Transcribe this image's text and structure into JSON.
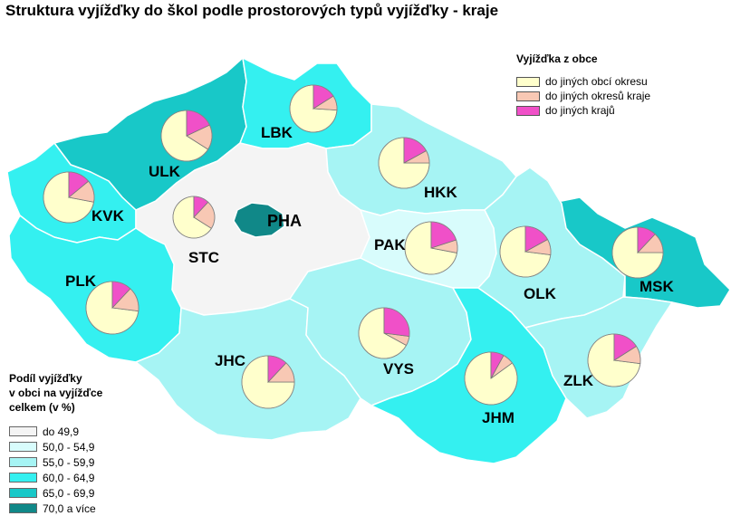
{
  "title": "Struktura vyjížďky do škol podle prostorových typů vyjížďky - kraje",
  "colors": {
    "pie_okres": "#ffffcc",
    "pie_kraj": "#f8c8b4",
    "pie_jine": "#f050c8",
    "c1": "#f4f4f4",
    "c2": "#d8fcfc",
    "c3": "#a6f4f4",
    "c4": "#34f0f0",
    "c5": "#18c8c8",
    "c6": "#108888"
  },
  "legend_top": {
    "title": "Vyjížďka z obce",
    "items": [
      {
        "label": "do jiných obcí okresu",
        "color": "#ffffcc"
      },
      {
        "label": "do jiných okresů kraje",
        "color": "#f8c8b4"
      },
      {
        "label": "do jiných krajů",
        "color": "#f050c8"
      }
    ]
  },
  "legend_bottom": {
    "title_lines": [
      "Podíl vyjížďky",
      "v obci na vyjížďce",
      "celkem (v %)"
    ],
    "classes": [
      {
        "label": "do 49,9",
        "color": "#f4f4f4"
      },
      {
        "label": "50,0 - 54,9",
        "color": "#d8fcfc"
      },
      {
        "label": "55,0 - 59,9",
        "color": "#a6f4f4"
      },
      {
        "label": "60,0 - 64,9",
        "color": "#34f0f0"
      },
      {
        "label": "65,0 - 69,9",
        "color": "#18c8c8"
      },
      {
        "label": "70,0  a více",
        "color": "#108888"
      }
    ]
  },
  "regions": [
    {
      "code": "PHA",
      "class": 6,
      "pie": null
    },
    {
      "code": "STC",
      "class": 1,
      "pie": [
        0.66,
        0.22,
        0.12
      ]
    },
    {
      "code": "ULK",
      "class": 5,
      "pie": [
        0.66,
        0.16,
        0.18
      ]
    },
    {
      "code": "LBK",
      "class": 4,
      "pie": [
        0.74,
        0.1,
        0.16
      ]
    },
    {
      "code": "KVK",
      "class": 4,
      "pie": [
        0.72,
        0.14,
        0.14
      ]
    },
    {
      "code": "PLK",
      "class": 4,
      "pie": [
        0.73,
        0.15,
        0.12
      ]
    },
    {
      "code": "HKK",
      "class": 3,
      "pie": [
        0.75,
        0.08,
        0.17
      ]
    },
    {
      "code": "PAK",
      "class": 2,
      "pie": [
        0.72,
        0.08,
        0.2
      ]
    },
    {
      "code": "JHC",
      "class": 3,
      "pie": [
        0.75,
        0.13,
        0.12
      ]
    },
    {
      "code": "VYS",
      "class": 3,
      "pie": [
        0.67,
        0.06,
        0.27
      ]
    },
    {
      "code": "JHM",
      "class": 4,
      "pie": [
        0.85,
        0.07,
        0.08
      ]
    },
    {
      "code": "OLK",
      "class": 3,
      "pie": [
        0.73,
        0.1,
        0.17
      ]
    },
    {
      "code": "MSK",
      "class": 5,
      "pie": [
        0.75,
        0.13,
        0.12
      ]
    },
    {
      "code": "ZLK",
      "class": 3,
      "pie": [
        0.73,
        0.11,
        0.16
      ]
    }
  ]
}
